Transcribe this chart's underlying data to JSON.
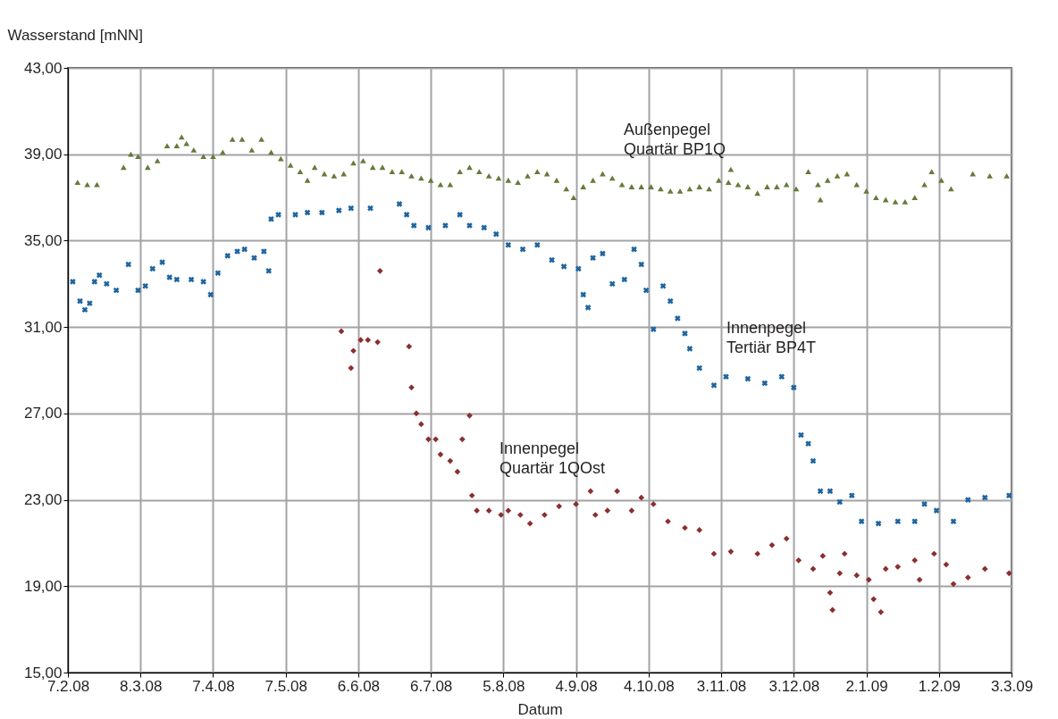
{
  "chart_data": {
    "type": "scatter",
    "xlabel": "Datum",
    "ylabel": "Wasserstand [mNN]",
    "xlim": [
      "2008-02-07",
      "2009-03-03"
    ],
    "xticks": [
      {
        "value": "2008-02-07",
        "label": "7.2.08"
      },
      {
        "value": "2008-03-08",
        "label": "8.3.08"
      },
      {
        "value": "2008-04-07",
        "label": "7.4.08"
      },
      {
        "value": "2008-05-07",
        "label": "7.5.08"
      },
      {
        "value": "2008-06-06",
        "label": "6.6.08"
      },
      {
        "value": "2008-07-06",
        "label": "6.7.08"
      },
      {
        "value": "2008-08-05",
        "label": "5.8.08"
      },
      {
        "value": "2008-09-04",
        "label": "4.9.08"
      },
      {
        "value": "2008-10-04",
        "label": "4.10.08"
      },
      {
        "value": "2008-11-03",
        "label": "3.11.08"
      },
      {
        "value": "2008-12-03",
        "label": "3.12.08"
      },
      {
        "value": "2009-01-02",
        "label": "2.1.09"
      },
      {
        "value": "2009-02-01",
        "label": "1.2.09"
      },
      {
        "value": "2009-03-03",
        "label": "3.3.09"
      }
    ],
    "ylim": [
      15,
      43
    ],
    "yticks": [
      {
        "value": 15,
        "label": "15,00"
      },
      {
        "value": 19,
        "label": "19,00"
      },
      {
        "value": 23,
        "label": "23,00"
      },
      {
        "value": 27,
        "label": "27,00"
      },
      {
        "value": 31,
        "label": "31,00"
      },
      {
        "value": 35,
        "label": "35,00"
      },
      {
        "value": 39,
        "label": "39,00"
      },
      {
        "value": 43,
        "label": "43,00"
      }
    ],
    "grid": true,
    "series": [
      {
        "name": "Außenpegel\nQuartär BP1Q",
        "color": "#667a3a",
        "marker": "triangle",
        "x": [
          "2008-02-11",
          "2008-02-15",
          "2008-02-19",
          "2008-03-01",
          "2008-03-04",
          "2008-03-07",
          "2008-03-11",
          "2008-03-15",
          "2008-03-19",
          "2008-03-23",
          "2008-03-25",
          "2008-03-27",
          "2008-03-30",
          "2008-04-03",
          "2008-04-07",
          "2008-04-11",
          "2008-04-15",
          "2008-04-19",
          "2008-04-23",
          "2008-04-27",
          "2008-05-01",
          "2008-05-05",
          "2008-05-09",
          "2008-05-13",
          "2008-05-16",
          "2008-05-19",
          "2008-05-23",
          "2008-05-27",
          "2008-05-31",
          "2008-06-04",
          "2008-06-08",
          "2008-06-12",
          "2008-06-16",
          "2008-06-20",
          "2008-06-24",
          "2008-06-28",
          "2008-07-02",
          "2008-07-06",
          "2008-07-10",
          "2008-07-14",
          "2008-07-18",
          "2008-07-22",
          "2008-07-26",
          "2008-07-30",
          "2008-08-03",
          "2008-08-07",
          "2008-08-11",
          "2008-08-15",
          "2008-08-19",
          "2008-08-23",
          "2008-08-27",
          "2008-08-31",
          "2008-09-03",
          "2008-09-07",
          "2008-09-11",
          "2008-09-15",
          "2008-09-19",
          "2008-09-23",
          "2008-09-27",
          "2008-10-01",
          "2008-10-05",
          "2008-10-09",
          "2008-10-13",
          "2008-10-17",
          "2008-10-21",
          "2008-10-25",
          "2008-10-29",
          "2008-11-02",
          "2008-11-06",
          "2008-11-07",
          "2008-11-10",
          "2008-11-14",
          "2008-11-18",
          "2008-11-22",
          "2008-11-26",
          "2008-11-30",
          "2008-12-04",
          "2008-12-09",
          "2008-12-13",
          "2008-12-14",
          "2008-12-17",
          "2008-12-21",
          "2008-12-25",
          "2008-12-29",
          "2009-01-02",
          "2009-01-06",
          "2009-01-10",
          "2009-01-14",
          "2009-01-18",
          "2009-01-22",
          "2009-01-26",
          "2009-01-29",
          "2009-02-02",
          "2009-02-06",
          "2009-02-15",
          "2009-02-22",
          "2009-03-01"
        ],
        "values": [
          37.7,
          37.6,
          37.6,
          38.4,
          39.0,
          38.9,
          38.4,
          38.7,
          39.4,
          39.4,
          39.8,
          39.5,
          39.2,
          38.9,
          38.9,
          39.1,
          39.7,
          39.7,
          39.2,
          39.7,
          39.1,
          38.8,
          38.5,
          38.2,
          37.8,
          38.4,
          38.1,
          38.0,
          38.1,
          38.6,
          38.7,
          38.4,
          38.4,
          38.2,
          38.2,
          38.0,
          37.9,
          37.8,
          37.6,
          37.6,
          38.2,
          38.4,
          38.2,
          38.0,
          37.9,
          37.8,
          37.7,
          38.0,
          38.2,
          38.1,
          37.8,
          37.4,
          37.0,
          37.5,
          37.8,
          38.1,
          37.9,
          37.6,
          37.5,
          37.5,
          37.5,
          37.4,
          37.3,
          37.3,
          37.4,
          37.5,
          37.4,
          37.8,
          37.7,
          38.3,
          37.6,
          37.5,
          37.2,
          37.5,
          37.5,
          37.6,
          37.4,
          38.2,
          37.6,
          36.9,
          37.8,
          38.0,
          38.1,
          37.6,
          37.3,
          37.0,
          36.9,
          36.8,
          36.8,
          37.0,
          37.6,
          38.2,
          37.8,
          37.4,
          38.1,
          38.0,
          38.0
        ]
      },
      {
        "name": "Innenpegel\nTertiär BP4T",
        "color": "#1f65a0",
        "marker": "cross",
        "x": [
          "2008-02-09",
          "2008-02-12",
          "2008-02-14",
          "2008-02-16",
          "2008-02-18",
          "2008-02-20",
          "2008-02-23",
          "2008-02-27",
          "2008-03-03",
          "2008-03-07",
          "2008-03-10",
          "2008-03-13",
          "2008-03-17",
          "2008-03-20",
          "2008-03-23",
          "2008-03-29",
          "2008-04-03",
          "2008-04-06",
          "2008-04-09",
          "2008-04-13",
          "2008-04-17",
          "2008-04-20",
          "2008-04-24",
          "2008-04-28",
          "2008-04-30",
          "2008-05-01",
          "2008-05-04",
          "2008-05-11",
          "2008-05-16",
          "2008-05-22",
          "2008-05-29",
          "2008-06-03",
          "2008-06-11",
          "2008-06-23",
          "2008-06-26",
          "2008-06-29",
          "2008-07-05",
          "2008-07-12",
          "2008-07-18",
          "2008-07-22",
          "2008-07-28",
          "2008-08-02",
          "2008-08-07",
          "2008-08-13",
          "2008-08-19",
          "2008-08-25",
          "2008-08-30",
          "2008-09-05",
          "2008-09-07",
          "2008-09-09",
          "2008-09-11",
          "2008-09-15",
          "2008-09-19",
          "2008-09-24",
          "2008-09-28",
          "2008-10-01",
          "2008-10-03",
          "2008-10-06",
          "2008-10-10",
          "2008-10-13",
          "2008-10-16",
          "2008-10-19",
          "2008-10-21",
          "2008-10-25",
          "2008-10-31",
          "2008-11-05",
          "2008-11-14",
          "2008-11-21",
          "2008-11-28",
          "2008-12-03",
          "2008-12-06",
          "2008-12-09",
          "2008-12-11",
          "2008-12-14",
          "2008-12-18",
          "2008-12-22",
          "2008-12-27",
          "2008-12-31",
          "2009-01-07",
          "2009-01-15",
          "2009-01-22",
          "2009-01-26",
          "2009-01-31",
          "2009-02-07",
          "2009-02-13",
          "2009-02-20",
          "2009-03-02"
        ],
        "values": [
          33.1,
          32.2,
          31.8,
          32.1,
          33.1,
          33.4,
          33.0,
          32.7,
          33.9,
          32.7,
          32.9,
          33.7,
          34.0,
          33.3,
          33.2,
          33.2,
          33.1,
          32.5,
          33.5,
          34.3,
          34.5,
          34.6,
          34.2,
          34.5,
          33.6,
          36.0,
          36.2,
          36.2,
          36.3,
          36.3,
          36.4,
          36.5,
          36.5,
          36.7,
          36.2,
          35.7,
          35.6,
          35.7,
          36.2,
          35.7,
          35.6,
          35.3,
          34.8,
          34.6,
          34.8,
          34.1,
          33.8,
          33.7,
          32.5,
          31.9,
          34.2,
          34.4,
          33.0,
          33.2,
          34.6,
          33.9,
          32.7,
          30.9,
          32.9,
          32.2,
          31.4,
          30.7,
          30.0,
          29.1,
          28.3,
          28.7,
          28.6,
          28.4,
          28.7,
          28.2,
          26.0,
          25.6,
          24.8,
          23.4,
          23.4,
          22.9,
          23.2,
          22.0,
          21.9,
          22.0,
          22.0,
          22.8,
          22.5,
          22.0,
          23.0,
          23.1,
          23.2
        ]
      },
      {
        "name": "Innenpegel\nQuartär 1QOst",
        "color": "#8b2f2f",
        "marker": "diamond",
        "x": [
          "2008-05-30",
          "2008-06-03",
          "2008-06-04",
          "2008-06-07",
          "2008-06-10",
          "2008-06-14",
          "2008-06-15",
          "2008-06-27",
          "2008-06-28",
          "2008-06-30",
          "2008-07-02",
          "2008-07-05",
          "2008-07-08",
          "2008-07-10",
          "2008-07-14",
          "2008-07-17",
          "2008-07-19",
          "2008-07-22",
          "2008-07-23",
          "2008-07-25",
          "2008-07-30",
          "2008-08-04",
          "2008-08-07",
          "2008-08-12",
          "2008-08-16",
          "2008-08-22",
          "2008-08-28",
          "2008-09-04",
          "2008-09-10",
          "2008-09-12",
          "2008-09-17",
          "2008-09-21",
          "2008-09-27",
          "2008-10-01",
          "2008-10-06",
          "2008-10-12",
          "2008-10-19",
          "2008-10-25",
          "2008-10-31",
          "2008-11-07",
          "2008-11-18",
          "2008-11-24",
          "2008-11-30",
          "2008-12-05",
          "2008-12-11",
          "2008-12-15",
          "2008-12-18",
          "2008-12-19",
          "2008-12-22",
          "2008-12-24",
          "2008-12-29",
          "2009-01-03",
          "2009-01-05",
          "2009-01-08",
          "2009-01-10",
          "2009-01-15",
          "2009-01-22",
          "2009-01-24",
          "2009-01-30",
          "2009-02-04",
          "2009-02-07",
          "2009-02-13",
          "2009-02-20",
          "2009-03-02"
        ],
        "values": [
          30.8,
          29.1,
          29.9,
          30.4,
          30.4,
          30.3,
          33.6,
          30.1,
          28.2,
          27.0,
          26.5,
          25.8,
          25.8,
          25.1,
          24.8,
          24.3,
          25.8,
          26.9,
          23.2,
          22.5,
          22.5,
          22.3,
          22.5,
          22.3,
          21.9,
          22.3,
          22.7,
          22.8,
          23.4,
          22.3,
          22.5,
          23.4,
          22.5,
          23.1,
          22.8,
          22.0,
          21.7,
          21.6,
          20.5,
          20.6,
          20.5,
          20.9,
          21.2,
          20.2,
          19.8,
          20.4,
          18.7,
          17.9,
          19.6,
          20.5,
          19.5,
          19.3,
          18.4,
          17.8,
          19.8,
          19.9,
          20.2,
          19.3,
          20.5,
          20.0,
          19.1,
          19.4,
          19.8,
          19.6
        ]
      }
    ]
  }
}
